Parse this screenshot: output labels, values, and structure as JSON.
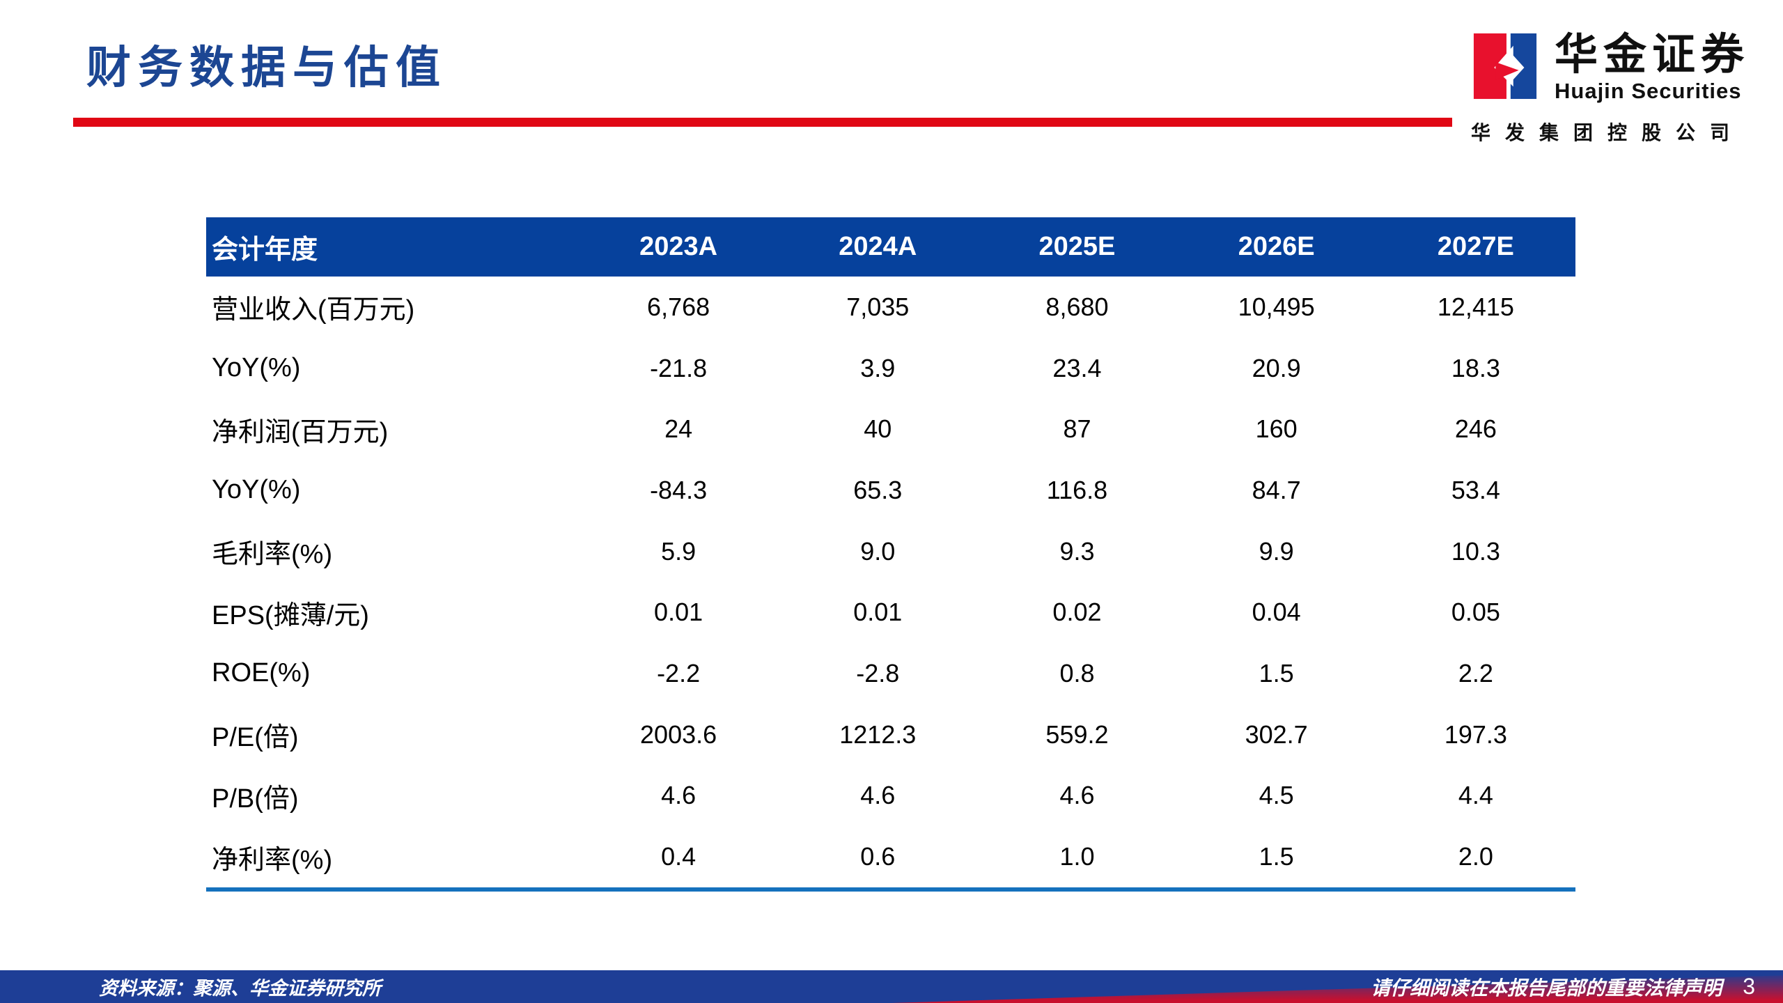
{
  "page": {
    "title": "财务数据与估值",
    "page_number": "3"
  },
  "logo": {
    "name_cn": "华金证券",
    "name_en": "Huajin Securities",
    "parent_company": "华发集团控股公司"
  },
  "table": {
    "header_label": "会计年度",
    "columns": [
      "2023A",
      "2024A",
      "2025E",
      "2026E",
      "2027E"
    ],
    "rows": [
      {
        "label": "营业收入(百万元)",
        "values": [
          "6,768",
          "7,035",
          "8,680",
          "10,495",
          "12,415"
        ]
      },
      {
        "label": "YoY(%)",
        "values": [
          "-21.8",
          "3.9",
          "23.4",
          "20.9",
          "18.3"
        ]
      },
      {
        "label": "净利润(百万元)",
        "values": [
          "24",
          "40",
          "87",
          "160",
          "246"
        ]
      },
      {
        "label": "YoY(%)",
        "values": [
          "-84.3",
          "65.3",
          "116.8",
          "84.7",
          "53.4"
        ]
      },
      {
        "label": "毛利率(%)",
        "values": [
          "5.9",
          "9.0",
          "9.3",
          "9.9",
          "10.3"
        ]
      },
      {
        "label": "EPS(摊薄/元)",
        "values": [
          "0.01",
          "0.01",
          "0.02",
          "0.04",
          "0.05"
        ]
      },
      {
        "label": "ROE(%)",
        "values": [
          "-2.2",
          "-2.8",
          "0.8",
          "1.5",
          "2.2"
        ]
      },
      {
        "label": "P/E(倍)",
        "values": [
          "2003.6",
          "1212.3",
          "559.2",
          "302.7",
          "197.3"
        ]
      },
      {
        "label": "P/B(倍)",
        "values": [
          "4.6",
          "4.6",
          "4.6",
          "4.5",
          "4.4"
        ]
      },
      {
        "label": "净利率(%)",
        "values": [
          "0.4",
          "0.6",
          "1.0",
          "1.5",
          "2.0"
        ]
      }
    ]
  },
  "footer": {
    "source": "资料来源：聚源、华金证券研究所",
    "disclaimer": "请仔细阅读在本报告尾部的重要法律声明",
    "page_number": "3"
  },
  "colors": {
    "title_blue": "#1c4693",
    "accent_red": "#e00714",
    "table_header_bg": "#06419c",
    "table_bottom_line": "#1571bd",
    "footer_blue": "#1e3e96",
    "footer_red": "#c8102e",
    "logo_red": "#e8112d",
    "logo_blue": "#15479d"
  }
}
